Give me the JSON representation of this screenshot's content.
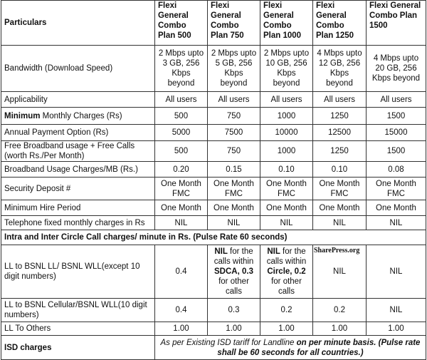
{
  "header": {
    "particulars": "Particulars",
    "plans": [
      "Flexi General Combo Plan 500",
      "Flexi General Combo Plan 750",
      "Flexi General Combo Plan 1000",
      "Flexi General Combo Plan 1250",
      "Flexi General Combo Plan 1500"
    ]
  },
  "rows": [
    {
      "label": "Bandwidth (Download Speed)",
      "values": [
        "2 Mbps upto 3 GB, 256 Kbps beyond",
        "2 Mbps upto 5 GB, 256 Kbps beyond",
        "2 Mbps upto 10 GB, 256 Kbps beyond",
        "4 Mbps upto 12 GB, 256 Kbps beyond",
        "4 Mbps upto 20 GB, 256 Kbps beyond"
      ]
    },
    {
      "label": "Applicability",
      "values": [
        "All users",
        "All users",
        "All users",
        "All users",
        "All users"
      ]
    },
    {
      "label_bold": "Minimum",
      "label": " Monthly Charges (Rs)",
      "values": [
        "500",
        "750",
        "1000",
        "1250",
        "1500"
      ]
    },
    {
      "label": "Annual Payment Option (Rs)",
      "values": [
        "5000",
        "7500",
        "10000",
        "12500",
        "15000"
      ]
    },
    {
      "label": "Free Broadband usage + Free Calls (worth Rs./Per Month)",
      "values": [
        "500",
        "750",
        "1000",
        "1250",
        "1500"
      ]
    },
    {
      "label": "Broadband Usage Charges/MB (Rs.)",
      "values": [
        "0.20",
        "0.15",
        "0.10",
        "0.10",
        "0.08"
      ]
    },
    {
      "label": "Security Deposit #",
      "values": [
        "One Month FMC",
        "One Month FMC",
        "One Month FMC",
        "One Month FMC",
        "One Month FMC"
      ]
    },
    {
      "label": "Minimum Hire Period",
      "values": [
        "One Month",
        "One Month",
        "One Month",
        "One Month",
        "One Month"
      ]
    },
    {
      "label": "Telephone fixed monthly charges in Rs",
      "values": [
        "NIL",
        "NIL",
        "NIL",
        "NIL",
        "NIL"
      ]
    }
  ],
  "section": "Intra and Inter Circle Call charges/ minute in Rs. (Pulse Rate 60 seconds)",
  "calls": {
    "ll_label": "LL to BSNL LL/ BSNL WLL(except 10 digit numbers)",
    "ll_1": "0.4",
    "ll_2": {
      "a": "NIL",
      "b": " for the calls within ",
      "c": "SDCA, 0.3",
      "d": " for other calls"
    },
    "ll_3": {
      "a": "NIL",
      "b": " for the calls within ",
      "c": "Circle, 0.2",
      "d": " for other calls"
    },
    "ll_4": "NIL",
    "ll_5": "NIL",
    "cell_label": "LL to BSNL Cellular/BSNL WLL(10 digit numbers)",
    "cell_values": [
      "0.4",
      "0.3",
      "0.2",
      "0.2",
      "NIL"
    ],
    "others_label": "LL To Others",
    "others_values": [
      "1.00",
      "1.00",
      "1.00",
      "1.00",
      "1.00"
    ],
    "isd_label": "ISD charges",
    "isd_a": "As per Existing ISD tariff for Landline",
    "isd_b": " on per minute basis. (Pulse rate shall be 60 seconds for all countries.)"
  },
  "watermark": "SharePress.org"
}
